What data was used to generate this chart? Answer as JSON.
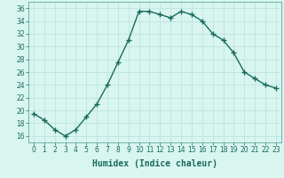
{
  "x": [
    0,
    1,
    2,
    3,
    4,
    5,
    6,
    7,
    8,
    9,
    10,
    11,
    12,
    13,
    14,
    15,
    16,
    17,
    18,
    19,
    20,
    21,
    22,
    23
  ],
  "y": [
    19.5,
    18.5,
    17,
    16,
    17,
    19,
    21,
    24,
    27.5,
    31,
    35.5,
    35.5,
    35,
    34.5,
    35.5,
    35,
    34,
    32,
    31,
    29,
    26,
    25,
    24,
    23.5
  ],
  "line_color": "#1a6b5a",
  "marker": "+",
  "marker_size": 4,
  "marker_lw": 1.0,
  "line_width": 1.0,
  "bg_color": "#d8f5f0",
  "grid_color": "#b8e0db",
  "xlabel": "Humidex (Indice chaleur)",
  "xlim": [
    -0.5,
    23.5
  ],
  "ylim": [
    15,
    37
  ],
  "yticks": [
    16,
    18,
    20,
    22,
    24,
    26,
    28,
    30,
    32,
    34,
    36
  ],
  "xticks": [
    0,
    1,
    2,
    3,
    4,
    5,
    6,
    7,
    8,
    9,
    10,
    11,
    12,
    13,
    14,
    15,
    16,
    17,
    18,
    19,
    20,
    21,
    22,
    23
  ],
  "tick_fontsize": 5.5,
  "label_fontsize": 7,
  "spine_color": "#4a9a8a"
}
